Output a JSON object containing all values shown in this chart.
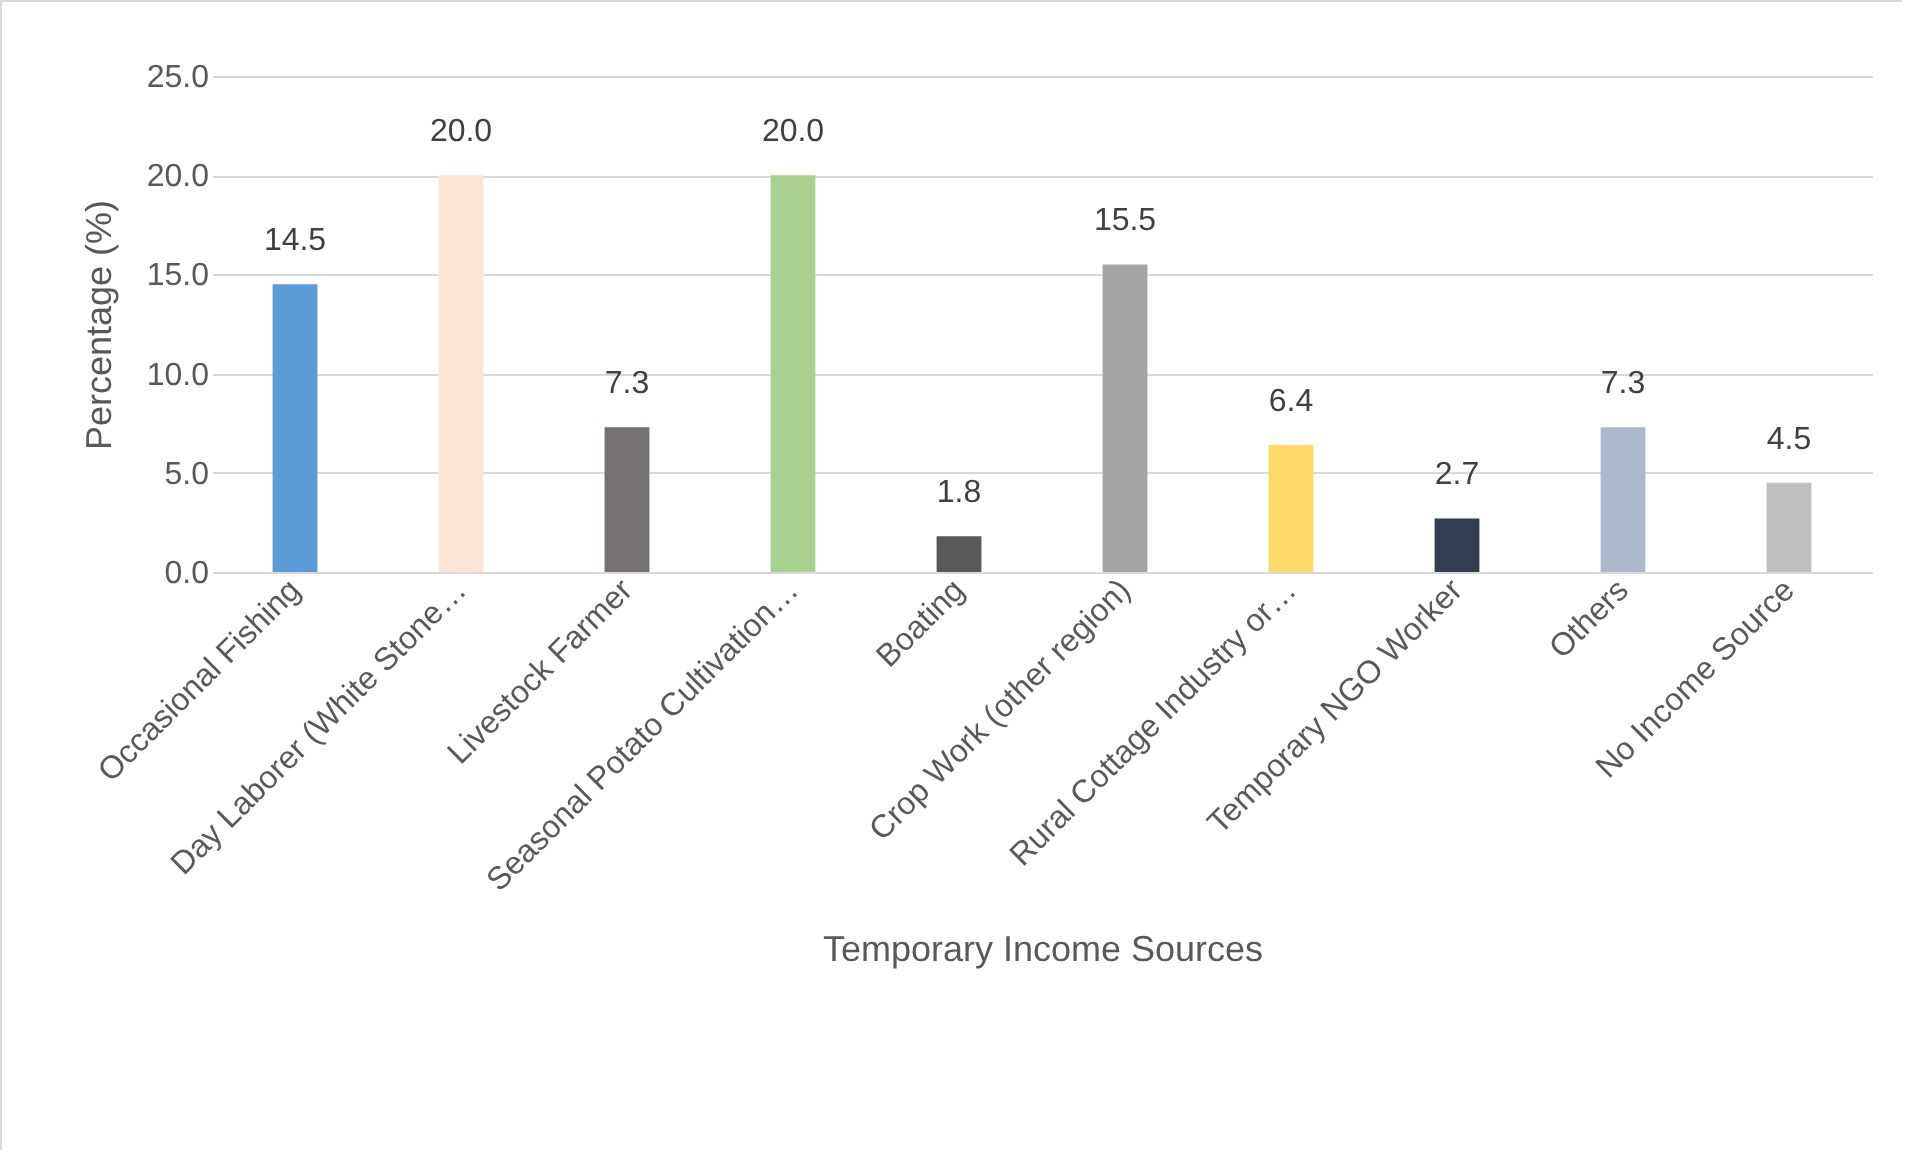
{
  "chart_data": {
    "type": "bar",
    "xlabel": "Temporary Income Sources",
    "ylabel": "Percentage (%)",
    "categories": [
      "Occasional Fishing",
      "Day Laborer (White Stone…",
      "Livestock Farmer",
      "Seasonal Potato Cultivation…",
      "Boating",
      "Crop Work (other region)",
      "Rural Cottage Industry or…",
      "Temporary NGO Worker",
      "Others",
      "No Income Source"
    ],
    "values": [
      14.5,
      20.0,
      7.3,
      20.0,
      1.8,
      15.5,
      6.4,
      2.7,
      7.3,
      4.5
    ],
    "value_labels": [
      "14.5",
      "20.0",
      "7.3",
      "20.0",
      "1.8",
      "15.5",
      "6.4",
      "2.7",
      "7.3",
      "4.5"
    ],
    "colors": [
      "#5b9bd5",
      "#fbe5d6",
      "#767171",
      "#a9d18e",
      "#595959",
      "#a5a5a5",
      "#ffd966",
      "#333f50",
      "#adb9ca",
      "#bfbfbf"
    ],
    "ylim": [
      0,
      25
    ],
    "yticks": [
      {
        "value": 0,
        "label": "0.0"
      },
      {
        "value": 5,
        "label": "5.0"
      },
      {
        "value": 10,
        "label": "10.0"
      },
      {
        "value": 15,
        "label": "15.0"
      },
      {
        "value": 20,
        "label": "20.0"
      },
      {
        "value": 25,
        "label": "25.0"
      }
    ],
    "grid": "y"
  }
}
